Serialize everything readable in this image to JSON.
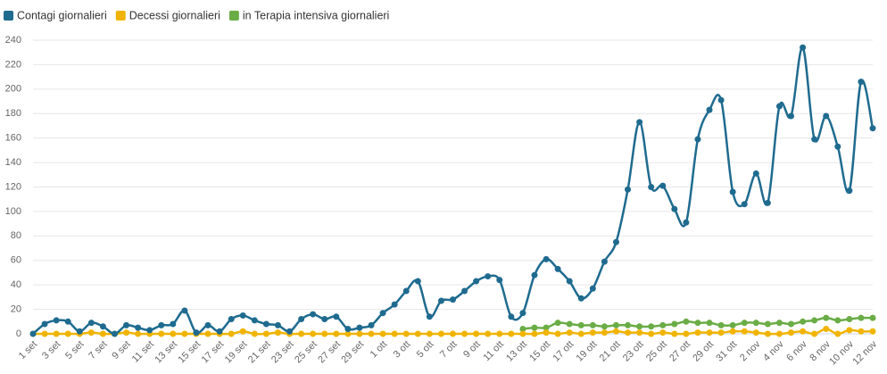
{
  "chart_data": {
    "type": "line",
    "categories": [
      "1 set",
      null,
      "3 set",
      null,
      "5 set",
      null,
      "7 set",
      null,
      "9 set",
      null,
      "11 set",
      null,
      "13 set",
      null,
      "15 set",
      null,
      "17 set",
      null,
      "19 set",
      null,
      "21 set",
      null,
      "23 set",
      null,
      "25 set",
      null,
      "27 set",
      null,
      "29 set",
      null,
      "1 ott",
      null,
      "3 ott",
      null,
      "5 ott",
      null,
      "7 ott",
      null,
      "9 ott",
      null,
      "11 ott",
      null,
      "13 ott",
      null,
      "15 ott",
      null,
      "17 ott",
      null,
      "19 ott",
      null,
      "21 ott",
      null,
      "23 ott",
      null,
      "25 ott",
      null,
      "27 ott",
      null,
      "29 ott",
      null,
      "31 ott",
      null,
      "2 nov",
      null,
      "4 nov",
      null,
      "6 nov",
      null,
      "8 nov",
      null,
      "10 nov",
      null,
      "12 nov"
    ],
    "series": [
      {
        "name": "Contagi giornalieri",
        "color": "#1f6b8f",
        "values": [
          0,
          8,
          11,
          10,
          2,
          9,
          6,
          0,
          7,
          5,
          3,
          7,
          8,
          19,
          1,
          7,
          2,
          12,
          15,
          11,
          8,
          7,
          2,
          12,
          16,
          12,
          14,
          4,
          5,
          7,
          17,
          24,
          35,
          43,
          14,
          27,
          28,
          35,
          43,
          47,
          44,
          14,
          17,
          48,
          61,
          53,
          43,
          29,
          37,
          59,
          75,
          118,
          173,
          120,
          121,
          102,
          91,
          159,
          183,
          191,
          116,
          106,
          131,
          107,
          186,
          178,
          234,
          159,
          178,
          153,
          117,
          206,
          168
        ]
      },
      {
        "name": "Decessi giornalieri",
        "color": "#f0b400",
        "values": [
          0,
          0,
          0,
          0,
          0,
          1,
          0,
          0,
          1,
          0,
          0,
          0,
          0,
          0,
          0,
          0,
          0,
          0,
          2,
          0,
          0,
          1,
          0,
          0,
          0,
          0,
          0,
          0,
          0,
          0,
          0,
          0,
          0,
          0,
          0,
          0,
          0,
          0,
          0,
          0,
          0,
          0,
          0,
          0,
          1,
          0,
          1,
          0,
          1,
          1,
          2,
          1,
          1,
          0,
          1,
          0,
          0,
          1,
          1,
          1,
          2,
          2,
          1,
          0,
          0,
          1,
          2,
          0,
          4,
          0,
          3,
          2,
          2
        ]
      },
      {
        "name": "in Terapia intensiva giornalieri",
        "color": "#6aac46",
        "values": [
          null,
          null,
          null,
          null,
          null,
          null,
          null,
          null,
          null,
          null,
          null,
          null,
          null,
          null,
          null,
          null,
          null,
          null,
          null,
          null,
          null,
          null,
          null,
          null,
          null,
          null,
          null,
          null,
          null,
          null,
          null,
          null,
          null,
          null,
          null,
          null,
          null,
          null,
          null,
          null,
          null,
          null,
          4,
          5,
          5,
          9,
          8,
          7,
          7,
          6,
          7,
          7,
          6,
          6,
          7,
          8,
          10,
          9,
          9,
          7,
          7,
          9,
          9,
          8,
          9,
          8,
          10,
          11,
          13,
          11,
          12,
          13,
          13
        ]
      }
    ],
    "ylim": [
      0,
      240
    ],
    "yticks": [
      0,
      20,
      40,
      60,
      80,
      100,
      120,
      140,
      160,
      180,
      200,
      220,
      240
    ],
    "grid": true
  }
}
